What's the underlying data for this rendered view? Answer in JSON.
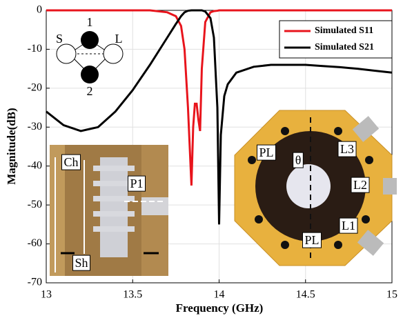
{
  "chart_data": {
    "type": "line",
    "x_label": "Frequency (GHz)",
    "y_label": "Magnitude(dB)",
    "x": [
      13,
      13.1,
      13.2,
      13.3,
      13.4,
      13.5,
      13.6,
      13.7,
      13.75,
      13.78,
      13.8,
      13.82,
      13.84,
      13.85,
      13.86,
      13.87,
      13.88,
      13.89,
      13.9,
      13.92,
      13.95,
      13.97,
      13.99,
      14.0,
      14.01,
      14.03,
      14.05,
      14.1,
      14.2,
      14.3,
      14.4,
      14.5,
      14.6,
      14.7,
      14.8,
      14.9,
      15
    ],
    "series": [
      {
        "name": "Simulated S11",
        "color": "#e8141c",
        "values": [
          0,
          0,
          0,
          0,
          0,
          0,
          0,
          -0.5,
          -1.5,
          -4,
          -10,
          -25,
          -45,
          -30,
          -24,
          -24,
          -28,
          -31,
          -15,
          -3,
          -0.5,
          -0.2,
          -0.1,
          0,
          0,
          0,
          0,
          0,
          0,
          0,
          0,
          0,
          0,
          0,
          0,
          0,
          0
        ]
      },
      {
        "name": "Simulated S21",
        "color": "#000000",
        "values": [
          -26,
          -29.5,
          -31,
          -30,
          -26,
          -20.5,
          -14,
          -7,
          -3.5,
          -1.5,
          -0.5,
          -0.1,
          0,
          0,
          0,
          0,
          0,
          0,
          0,
          -0.3,
          -2,
          -7,
          -25,
          -55,
          -32,
          -22,
          -19,
          -16,
          -14.5,
          -14,
          -14,
          -14,
          -14.3,
          -14.6,
          -15,
          -15.5,
          -16
        ]
      }
    ],
    "xlim": [
      13,
      15
    ],
    "ylim": [
      -70,
      0
    ],
    "xticks": [
      13,
      13.5,
      14,
      14.5,
      15
    ],
    "yticks": [
      0,
      -10,
      -20,
      -30,
      -40,
      -50,
      -60,
      -70
    ],
    "grid": true,
    "legend": "upper right",
    "annotations": [
      "S",
      "L",
      "1",
      "2",
      "Ch",
      "P1",
      "Sh",
      "PL",
      "θ",
      "L3",
      "L2",
      "L1",
      "PL"
    ]
  }
}
